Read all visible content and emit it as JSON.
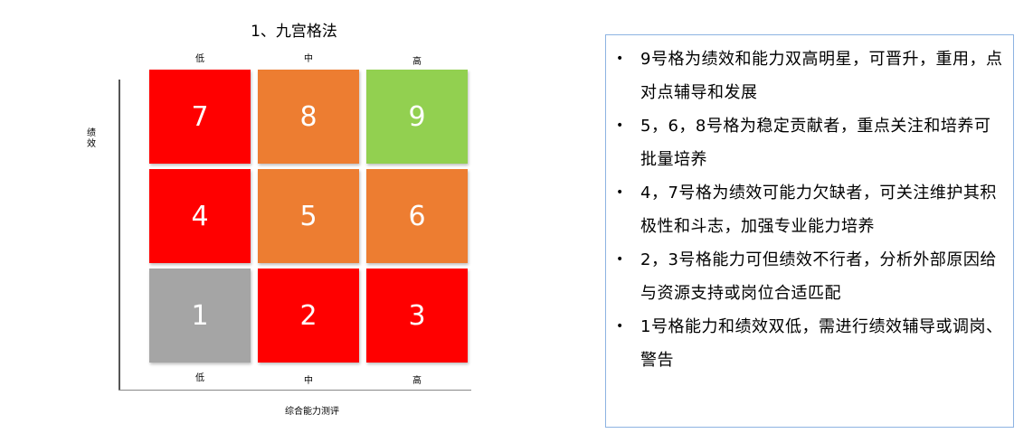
{
  "title": "1、九宫格法",
  "top_labels": [
    "低",
    "中",
    "高"
  ],
  "bottom_labels": [
    "低",
    "中",
    "高"
  ],
  "y_axis_label": "绩效",
  "x_axis_label": "综合能力测评",
  "colors": {
    "red": "#ff0000",
    "orange": "#ed7d31",
    "green": "#92d050",
    "gray": "#a5a5a5"
  },
  "grid": [
    [
      {
        "n": "7",
        "color": "#ff0000"
      },
      {
        "n": "8",
        "color": "#ed7d31"
      },
      {
        "n": "9",
        "color": "#92d050"
      }
    ],
    [
      {
        "n": "4",
        "color": "#ff0000"
      },
      {
        "n": "5",
        "color": "#ed7d31"
      },
      {
        "n": "6",
        "color": "#ed7d31"
      }
    ],
    [
      {
        "n": "1",
        "color": "#a5a5a5"
      },
      {
        "n": "2",
        "color": "#ff0000"
      },
      {
        "n": "3",
        "color": "#ff0000"
      }
    ]
  ],
  "bullets": [
    "9号格为绩效和能力双高明星，可晋升，重用，点对点辅导和发展",
    "5，6，8号格为稳定贡献者，重点关注和培养可批量培养",
    "4，7号格为绩效可能力欠缺者，可关注维护其积极性和斗志，加强专业能力培养",
    "2，3号格能力可但绩效不行者，分析外部原因给与资源支持或岗位合适匹配",
    "1号格能力和绩效双低，需进行绩效辅导或调岗、警告"
  ]
}
